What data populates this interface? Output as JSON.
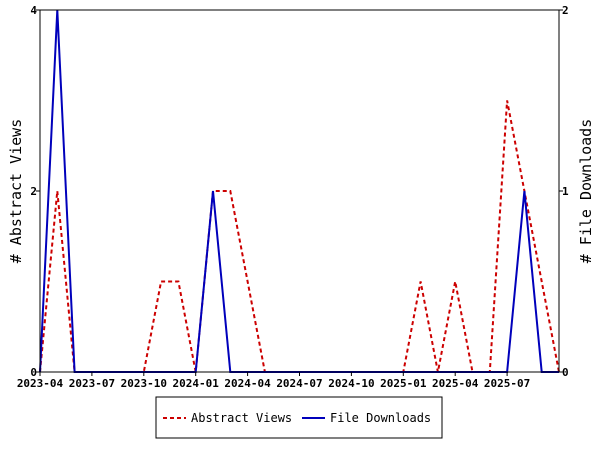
{
  "chart_data": {
    "type": "line",
    "xlabel": "",
    "ylabel_left": "# Abstract Views",
    "ylabel_right": "# File Downloads",
    "ylim_left": [
      0,
      4
    ],
    "ylim_right": [
      0,
      2
    ],
    "yticks_left": [
      "0",
      "2",
      "4"
    ],
    "yticks_right": [
      "0",
      "1",
      "2"
    ],
    "x_tick_labels": [
      "2023-04",
      "2023-07",
      "2023-10",
      "2024-01",
      "2024-04",
      "2024-07",
      "2024-10",
      "2025-01",
      "2025-04",
      "2025-07"
    ],
    "x_months": [
      "2023-04",
      "2023-05",
      "2023-06",
      "2023-07",
      "2023-08",
      "2023-09",
      "2023-10",
      "2023-11",
      "2023-12",
      "2024-01",
      "2024-02",
      "2024-03",
      "2024-04",
      "2024-05",
      "2024-06",
      "2024-07",
      "2024-08",
      "2024-09",
      "2024-10",
      "2024-11",
      "2024-12",
      "2025-01",
      "2025-02",
      "2025-03",
      "2025-04",
      "2025-05",
      "2025-06",
      "2025-07",
      "2025-08",
      "2025-09",
      "2025-10"
    ],
    "grid": false,
    "legend_position": "bottom",
    "series": [
      {
        "name": "Abstract Views",
        "axis": "left",
        "color": "#cc0000",
        "style": "dashed",
        "values": [
          0,
          2,
          0,
          0,
          0,
          0,
          0,
          1,
          1,
          0,
          2,
          2,
          1,
          0,
          0,
          0,
          0,
          0,
          0,
          0,
          0,
          0,
          1,
          0,
          1,
          0,
          0,
          3,
          2,
          1,
          0
        ]
      },
      {
        "name": "File Downloads",
        "axis": "right",
        "color": "#0000bb",
        "style": "solid",
        "values": [
          0,
          2,
          0,
          0,
          0,
          0,
          0,
          0,
          0,
          0,
          1,
          0,
          0,
          0,
          0,
          0,
          0,
          0,
          0,
          0,
          0,
          0,
          0,
          0,
          0,
          0,
          0,
          0,
          1,
          0,
          0
        ]
      }
    ]
  }
}
